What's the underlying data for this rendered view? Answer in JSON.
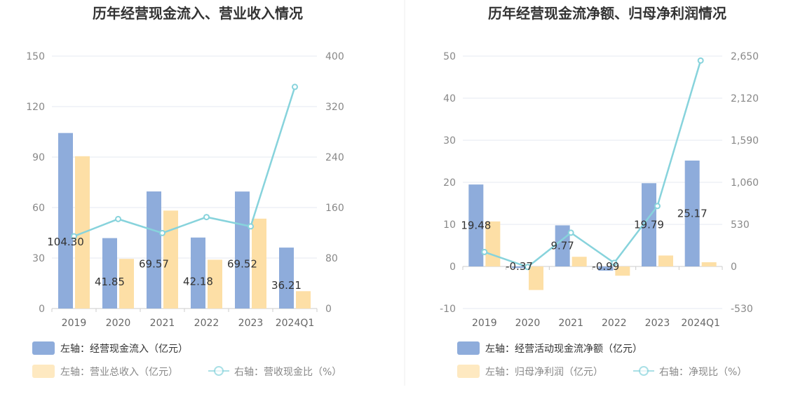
{
  "colors": {
    "bar_primary": "#8eacdb",
    "bar_secondary": "#fddfa6",
    "line": "#87d3dc",
    "grid": "#e4e8f2",
    "axis": "#cccccc",
    "divider": "#eeeeee"
  },
  "chart_data": [
    {
      "type": "bar+line",
      "title": "历年经营现金流入、营业收入情况",
      "categories": [
        "2019",
        "2020",
        "2021",
        "2022",
        "2023",
        "2024Q1"
      ],
      "left_axis": {
        "ylim": [
          0,
          150
        ],
        "ticks": [
          "150",
          "120",
          "90",
          "60",
          "30",
          "0"
        ],
        "tick_values": [
          150,
          120,
          90,
          60,
          30,
          0
        ]
      },
      "right_axis": {
        "ylim": [
          0,
          400
        ],
        "ticks": [
          "400",
          "320",
          "240",
          "160",
          "80",
          "0"
        ],
        "tick_values": [
          400,
          320,
          240,
          160,
          80,
          0
        ]
      },
      "series": [
        {
          "name": "左轴：经营现金流入（亿元）",
          "axis": "left",
          "kind": "bar",
          "color_key": "bar_primary",
          "values": [
            104.3,
            41.85,
            69.57,
            42.18,
            69.52,
            36.21
          ],
          "labels": [
            "104.30",
            "41.85",
            "69.57",
            "42.18",
            "69.52",
            "36.21"
          ]
        },
        {
          "name": "左轴：营业总收入（亿元）",
          "axis": "left",
          "kind": "bar",
          "color_key": "bar_secondary",
          "values": [
            90.5,
            29.5,
            58.2,
            29.0,
            53.4,
            10.3
          ]
        },
        {
          "name": "右轴：营收现金比（%）",
          "axis": "right",
          "kind": "line",
          "color_key": "line",
          "values": [
            114.5,
            141.8,
            119.6,
            144.9,
            130.1,
            351.2
          ]
        }
      ]
    },
    {
      "type": "bar+line",
      "title": "历年经营现金流净额、归母净利润情况",
      "categories": [
        "2019",
        "2020",
        "2021",
        "2022",
        "2023",
        "2024Q1"
      ],
      "left_axis": {
        "ylim": [
          -10,
          50
        ],
        "ticks": [
          "50",
          "40",
          "30",
          "20",
          "10",
          "0",
          "-10"
        ],
        "tick_values": [
          50,
          40,
          30,
          20,
          10,
          0,
          -10
        ]
      },
      "right_axis": {
        "ylim": [
          -530,
          2650
        ],
        "ticks": [
          "2,650",
          "2,120",
          "1,590",
          "1,060",
          "530",
          "0",
          "-530"
        ],
        "tick_values": [
          2650,
          2120,
          1590,
          1060,
          530,
          0,
          -530
        ]
      },
      "series": [
        {
          "name": "左轴：经营活动现金流净额（亿元）",
          "axis": "left",
          "kind": "bar",
          "color_key": "bar_primary",
          "values": [
            19.48,
            -0.37,
            9.77,
            -0.99,
            19.79,
            25.17
          ],
          "labels": [
            "19.48",
            "-0.37",
            "9.77",
            "-0.99",
            "19.79",
            "25.17"
          ]
        },
        {
          "name": "左轴：归母净利润（亿元）",
          "axis": "left",
          "kind": "bar",
          "color_key": "bar_secondary",
          "values": [
            10.7,
            -5.6,
            2.3,
            -2.2,
            2.6,
            1.0
          ]
        },
        {
          "name": "右轴：净现比（%）",
          "axis": "right",
          "kind": "line",
          "color_key": "line",
          "values": [
            182,
            -7,
            425,
            45,
            761,
            2594
          ]
        }
      ]
    }
  ]
}
